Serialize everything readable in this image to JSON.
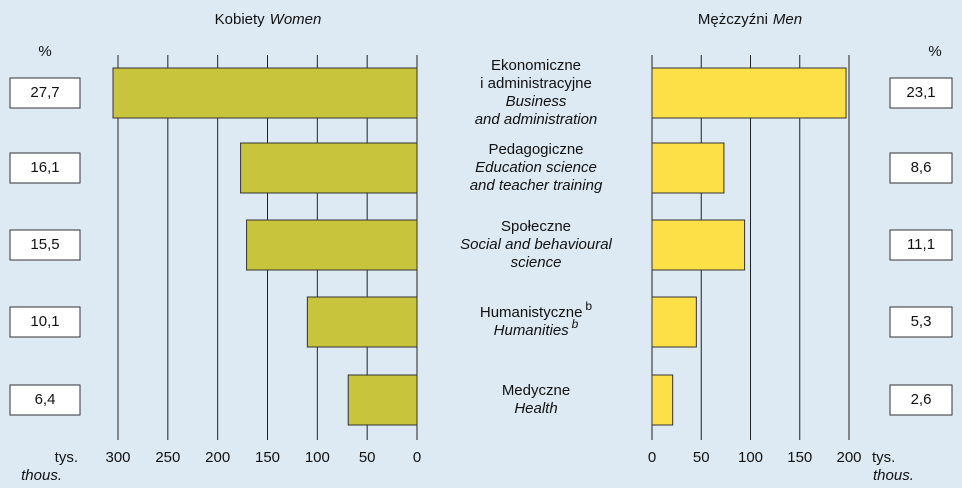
{
  "chart_data": {
    "type": "bar",
    "categories": [
      {
        "pl": [
          "Ekonomiczne",
          "i administracyjne"
        ],
        "en": [
          "Business",
          "and administration"
        ]
      },
      {
        "pl": [
          "Pedagogiczne"
        ],
        "en": [
          "Education science",
          "and teacher training"
        ]
      },
      {
        "pl": [
          "Społeczne"
        ],
        "en": [
          "Social and behavioural",
          "science"
        ]
      },
      {
        "pl": [
          "Humanistyczne"
        ],
        "en": [
          "Humanities"
        ],
        "pl_note": "b",
        "en_note": "b"
      },
      {
        "pl": [
          "Medyczne"
        ],
        "en": [
          "Health"
        ]
      }
    ],
    "series": [
      {
        "name": "Kobiety",
        "name_en": "Women",
        "color": "#c8c43c",
        "values": [
          305,
          177,
          171,
          110,
          69
        ],
        "percent": [
          27.7,
          16.1,
          15.5,
          10.1,
          6.4
        ],
        "percent_labels": [
          "27,7",
          "16,1",
          "15,5",
          "10,1",
          "6,4"
        ],
        "percent_unit": "%",
        "unit": [
          "tys.",
          "thous."
        ],
        "xlim": [
          0,
          300
        ],
        "xticks": [
          300,
          250,
          200,
          150,
          100,
          50,
          0
        ]
      },
      {
        "name": "Mężczyźni",
        "name_en": "Men",
        "color": "#fde047",
        "values": [
          197,
          73,
          94,
          45,
          21
        ],
        "percent": [
          23.1,
          8.6,
          11.1,
          5.3,
          2.6
        ],
        "percent_labels": [
          "23,1",
          "8,6",
          "11,1",
          "5,3",
          "2,6"
        ],
        "percent_unit": "%",
        "unit": [
          "tys.",
          "thous."
        ],
        "xlim": [
          0,
          200
        ],
        "xticks": [
          0,
          50,
          100,
          150,
          200
        ]
      }
    ]
  }
}
